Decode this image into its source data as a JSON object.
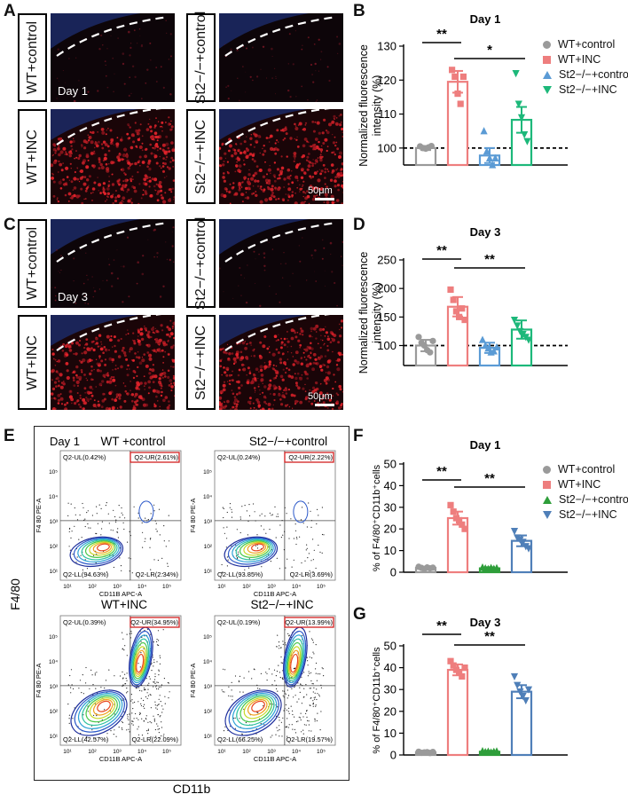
{
  "panels": {
    "A": "A",
    "B": "B",
    "C": "C",
    "D": "D",
    "E": "E",
    "F": "F",
    "G": "G"
  },
  "micro": {
    "wt_control": "WT+control",
    "wt_inc": "WT+INC",
    "st2_control": "St2−/−+control",
    "st2_inc": "St2−/−+INC",
    "day1": "Day 1",
    "day3": "Day 3",
    "scalebar": "50μm"
  },
  "legend_bd": [
    "WT+control",
    "WT+INC",
    "St2−/−+control",
    "St2−/−+INC"
  ],
  "legend_fg": [
    "WT+control",
    "WT+INC",
    "St2−/−+control",
    "St2−/−+INC"
  ],
  "colors": {
    "gray": "#9a9a9a",
    "red": "#ee7e7e",
    "blue": "#5b9bd5",
    "green": "#1db87a",
    "flowgreen": "#2e9e3a",
    "flowblue": "#4f7fb8"
  },
  "flow": {
    "day": "Day 1",
    "titles": [
      "WT +control",
      "St2−/−+control",
      "WT+INC",
      "St2−/−+INC"
    ],
    "ylabel": "F4/80",
    "xlabel": "CD11b",
    "axis_x": "CD11B APC-A",
    "axis_y": "F4 80 PE-A",
    "quads": [
      {
        "ul": "Q2-UL(0.42%)",
        "ur": "Q2-UR(2.61%)",
        "ll": "Q2-LL(94.63%)",
        "lr": "Q2-LR(2.34%)"
      },
      {
        "ul": "Q2-UL(0.24%)",
        "ur": "Q2-UR(2.22%)",
        "ll": "Q2-LL(93.85%)",
        "lr": "Q2-LR(3.69%)"
      },
      {
        "ul": "Q2-UL(0.39%)",
        "ur": "Q2-UR(34.95%)",
        "ll": "Q2-LL(42.57%)",
        "lr": "Q2-LR(22.09%)"
      },
      {
        "ul": "Q2-UL(0.19%)",
        "ur": "Q2-UR(13.99%)",
        "ll": "Q2-LL(66.25%)",
        "lr": "Q2-LR(19.57%)"
      }
    ]
  },
  "chart_data": [
    {
      "id": "B",
      "type": "bar",
      "title": "Day 1",
      "ylabel": "Normalized fluorescence intensity (%)",
      "ylim": [
        95,
        130
      ],
      "yticks": [
        100,
        110,
        120,
        130
      ],
      "categories": [
        "WT+control",
        "WT+INC",
        "St2−/−+control",
        "St2−/−+INC"
      ],
      "values": [
        100,
        119.5,
        97.8,
        108.3
      ],
      "errors": [
        0.6,
        3.2,
        2.2,
        3.8
      ],
      "points": [
        [
          100.5,
          100,
          99.8,
          100.2,
          100.6
        ],
        [
          123,
          121,
          116,
          113,
          121
        ],
        [
          105,
          99,
          97,
          95,
          97
        ],
        [
          122,
          113,
          109,
          104,
          102
        ]
      ],
      "reference_line": 100,
      "significance": [
        {
          "from": 0,
          "to": 1,
          "label": "**"
        },
        {
          "from": 1,
          "to": 3,
          "label": "*"
        }
      ]
    },
    {
      "id": "D",
      "type": "bar",
      "title": "Day 3",
      "ylabel": "Normalized fluorescence intensity (%)",
      "ylim": [
        65,
        250
      ],
      "yticks": [
        100,
        150,
        200,
        250
      ],
      "categories": [
        "WT+control",
        "WT+INC",
        "St2−/−+control",
        "St2−/−+INC"
      ],
      "values": [
        100,
        168,
        96,
        128
      ],
      "errors": [
        10,
        17,
        9,
        16
      ],
      "points": [
        [
          115,
          105,
          100,
          92,
          88,
          108
        ],
        [
          198,
          180,
          160,
          150,
          165,
          145
        ],
        [
          110,
          100,
          95,
          88,
          90,
          97
        ],
        [
          145,
          135,
          125,
          120,
          115,
          110
        ]
      ],
      "reference_line": 100,
      "significance": [
        {
          "from": 0,
          "to": 1,
          "label": "**"
        },
        {
          "from": 1,
          "to": 3,
          "label": "**"
        }
      ]
    },
    {
      "id": "F",
      "type": "bar",
      "title": "Day 1",
      "ylabel": "% of F4/80+CD11b+cells",
      "ylim": [
        0,
        50
      ],
      "yticks": [
        0,
        10,
        20,
        30,
        40,
        50
      ],
      "categories": [
        "WT+control",
        "WT+INC",
        "St2−/−+control",
        "St2−/−+INC"
      ],
      "values": [
        2,
        25,
        1.8,
        14.5
      ],
      "errors": [
        0.5,
        3,
        0.5,
        2.5
      ],
      "points": [
        [
          2.5,
          2,
          1.5,
          2.2,
          1.8,
          2.1
        ],
        [
          31,
          28,
          25,
          24,
          22,
          20
        ],
        [
          2.2,
          1.8,
          1.5,
          2,
          1.6,
          1.9
        ],
        [
          19,
          16,
          15,
          14,
          12,
          11
        ]
      ],
      "significance": [
        {
          "from": 0,
          "to": 1,
          "label": "**"
        },
        {
          "from": 1,
          "to": 3,
          "label": "**"
        }
      ]
    },
    {
      "id": "G",
      "type": "bar",
      "title": "Day 3",
      "ylabel": "% of F4/80+CD11b+cells",
      "ylim": [
        0,
        50
      ],
      "yticks": [
        0,
        10,
        20,
        30,
        40,
        50
      ],
      "categories": [
        "WT+control",
        "WT+INC",
        "St2−/−+control",
        "St2−/−+INC"
      ],
      "values": [
        1.2,
        39,
        1.5,
        29
      ],
      "errors": [
        0.4,
        2.5,
        0.4,
        3
      ],
      "points": [
        [
          1.5,
          1,
          1.2,
          1.3,
          0.9,
          1.4
        ],
        [
          43,
          41,
          39,
          38,
          36,
          40
        ],
        [
          1.8,
          1.4,
          1.6,
          1.2,
          1.5,
          1.7
        ],
        [
          36,
          32,
          29,
          27,
          25,
          30
        ]
      ],
      "significance": [
        {
          "from": 0,
          "to": 1,
          "label": "**"
        },
        {
          "from": 1,
          "to": 3,
          "label": "**"
        }
      ]
    }
  ]
}
